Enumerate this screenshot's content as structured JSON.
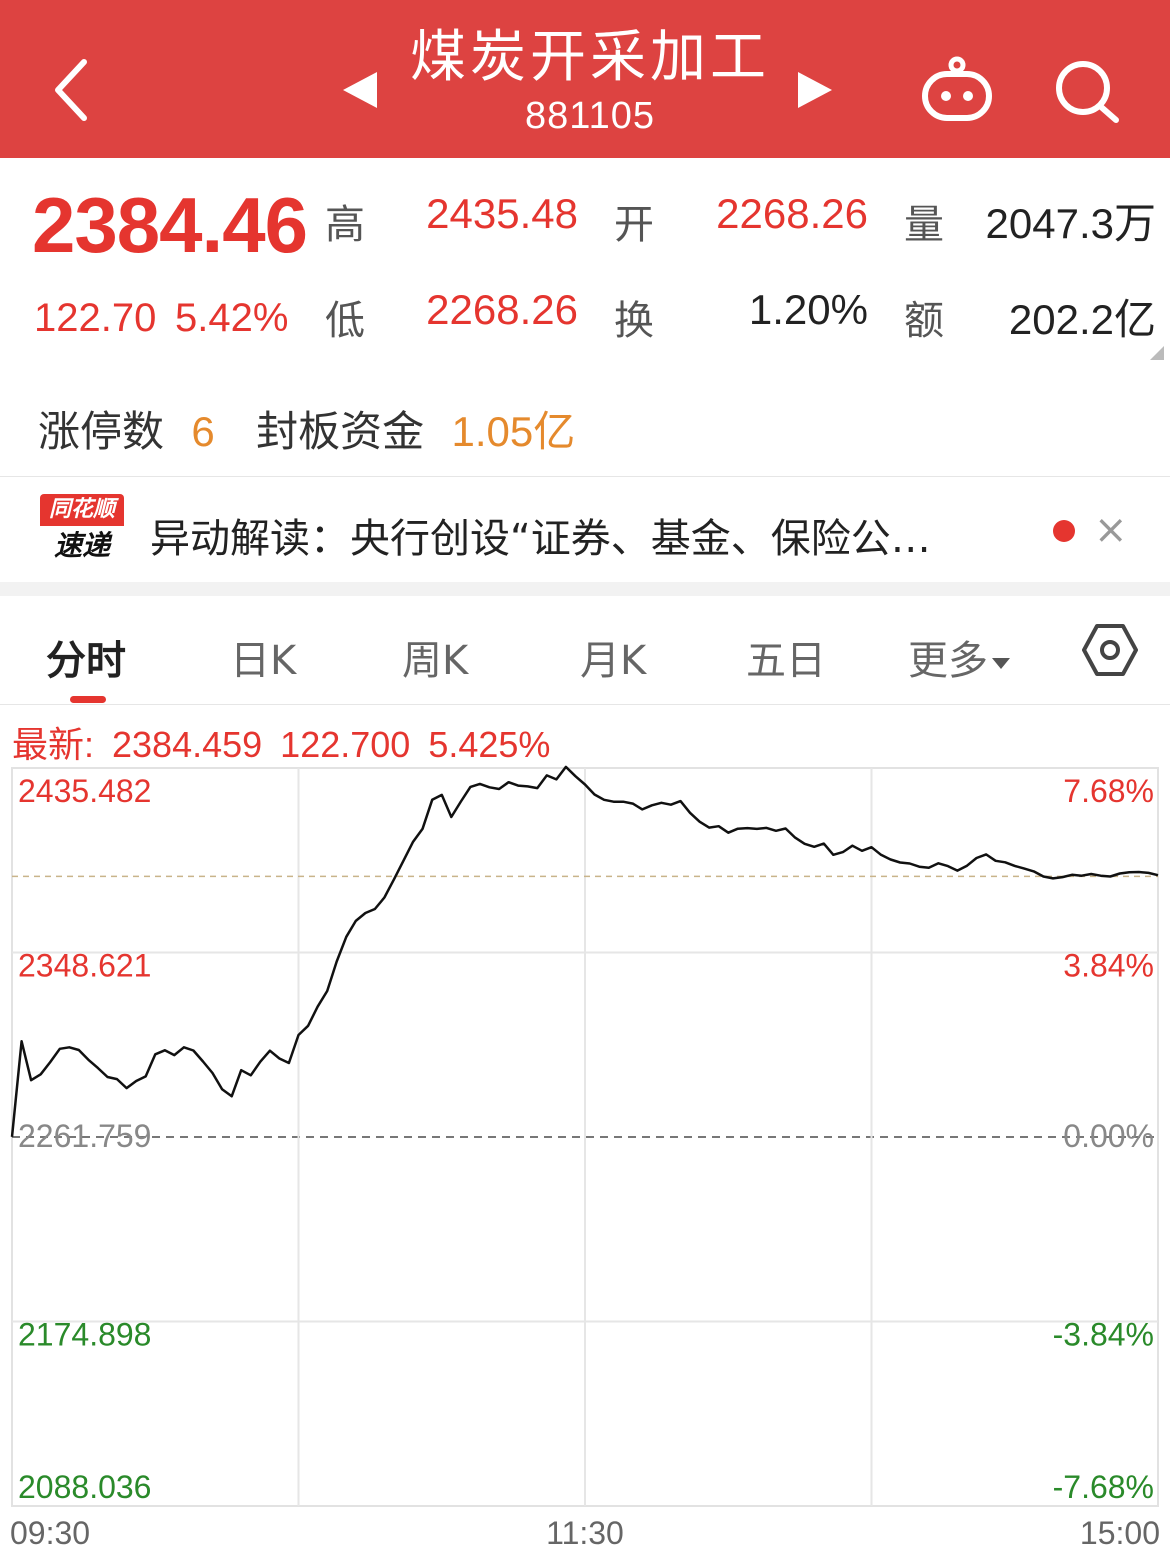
{
  "header": {
    "title": "煤炭开采加工",
    "code": "881105"
  },
  "quote": {
    "price": "2384.46",
    "change": "122.70",
    "change_pct": "5.42%",
    "high_label": "高",
    "high_value": "2435.48",
    "open_label": "开",
    "open_value": "2268.26",
    "volume_label": "量",
    "volume_value": "2047.3万",
    "low_label": "低",
    "low_value": "2268.26",
    "turnover_label": "换",
    "turnover_value": "1.20%",
    "amount_label": "额",
    "amount_value": "202.2亿"
  },
  "limit_up": {
    "count_label": "涨停数",
    "count_value": "6",
    "seal_label": "封板资金",
    "seal_value": "1.05亿"
  },
  "news": {
    "logo_top": "同花顺",
    "logo_bottom": "速递",
    "text": "异动解读：央行创设“证券、基金、保险公…",
    "close_symbol": "×"
  },
  "tabs": [
    {
      "label": "分时",
      "active": true
    },
    {
      "label": "日K",
      "active": false
    },
    {
      "label": "周K",
      "active": false
    },
    {
      "label": "月K",
      "active": false
    },
    {
      "label": "五日",
      "active": false
    },
    {
      "label": "更多",
      "active": false
    }
  ],
  "latest": {
    "label": "最新:",
    "price": "2384.459",
    "change": "122.700",
    "pct": "5.425%"
  },
  "colors": {
    "brand_red": "#dd4341",
    "up_red": "#e5352f",
    "down_green": "#2a8a2a",
    "limit_orange": "#e58a2d"
  },
  "chart_data": {
    "type": "line",
    "prev_close": 2261.759,
    "ylim": [
      2088.036,
      2435.482
    ],
    "left_ticks": [
      "2435.482",
      "2348.621",
      "2261.759",
      "2174.898",
      "2088.036"
    ],
    "right_ticks": [
      "7.68%",
      "3.84%",
      "0.00%",
      "-3.84%",
      "-7.68%"
    ],
    "x_ticks": [
      "09:30",
      "11:30",
      "15:00"
    ],
    "current": 2384.459,
    "series": [
      {
        "x": [
          0,
          2,
          4,
          6,
          8,
          10,
          12,
          14,
          16,
          18,
          20,
          22,
          24,
          26,
          28,
          30,
          32,
          34,
          36,
          38,
          40,
          42,
          44,
          46,
          48,
          50,
          52,
          54,
          56,
          58,
          60,
          62,
          64,
          66,
          68,
          70,
          72,
          74,
          76,
          78,
          80,
          82,
          84,
          86,
          88,
          90,
          92,
          94,
          96,
          98,
          100,
          102,
          104,
          106,
          108,
          110,
          112,
          114,
          116,
          118,
          120,
          122,
          124,
          126,
          128,
          130,
          132,
          134,
          136,
          138,
          140,
          142,
          144,
          146,
          148,
          150,
          152,
          154,
          156,
          158,
          160,
          162,
          164,
          166,
          168,
          170,
          172,
          174,
          176,
          178,
          180,
          182,
          184,
          186,
          188,
          190,
          192,
          194,
          196,
          198,
          200,
          202,
          204,
          206,
          208,
          210,
          212,
          214,
          216,
          218,
          220,
          222,
          224,
          226,
          228,
          230,
          232,
          234,
          236,
          238,
          240
        ],
        "values": [
          2261.8,
          2306.8,
          2288.5,
          2291.3,
          2297.0,
          2303.3,
          2304.0,
          2302.7,
          2298.1,
          2294.2,
          2290.0,
          2289.0,
          2284.8,
          2288.1,
          2290.3,
          2300.7,
          2302.6,
          2300.3,
          2304.0,
          2302.5,
          2297.3,
          2291.9,
          2284.2,
          2280.9,
          2293.2,
          2290.8,
          2297.2,
          2302.4,
          2298.7,
          2296.6,
          2309.8,
          2314.1,
          2323.1,
          2330.5,
          2344.4,
          2356.0,
          2363.5,
          2367.2,
          2369.1,
          2374.5,
          2383.1,
          2392.0,
          2400.8,
          2406.9,
          2420.5,
          2422.8,
          2412.4,
          2419.7,
          2426.6,
          2428.0,
          2426.4,
          2425.6,
          2428.8,
          2427.2,
          2426.8,
          2426.0,
          2432.0,
          2430.1,
          2436.0,
          2431.6,
          2427.7,
          2423.0,
          2420.5,
          2419.6,
          2419.6,
          2418.7,
          2416.0,
          2417.9,
          2419.1,
          2418.2,
          2419.9,
          2414.4,
          2410.2,
          2407.4,
          2408.1,
          2405.0,
          2406.9,
          2407.2,
          2406.8,
          2407.3,
          2405.9,
          2407.0,
          2402.7,
          2399.8,
          2398.4,
          2399.9,
          2394.6,
          2395.9,
          2398.9,
          2396.5,
          2398.2,
          2394.6,
          2392.4,
          2391.0,
          2390.5,
          2389.0,
          2388.5,
          2390.6,
          2389.3,
          2387.2,
          2389.5,
          2393.1,
          2394.8,
          2391.8,
          2391.1,
          2389.4,
          2388.1,
          2386.8,
          2384.4,
          2383.5,
          2384.1,
          2385.2,
          2384.8,
          2385.6,
          2384.8,
          2384.4,
          2385.8,
          2386.4,
          2386.5,
          2386.1,
          2385.0
        ]
      }
    ]
  }
}
